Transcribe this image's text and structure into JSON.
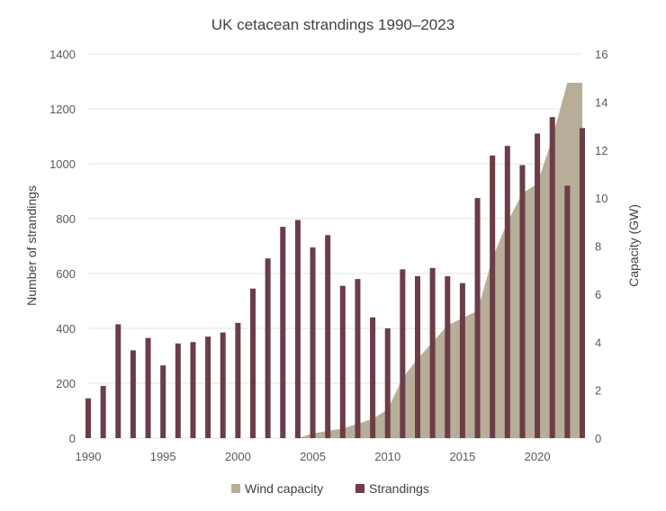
{
  "chart_data": {
    "type": "bar",
    "title": "UK cetacean strandings 1990–2023",
    "x": [
      1990,
      1991,
      1992,
      1993,
      1994,
      1995,
      1996,
      1997,
      1998,
      1999,
      2000,
      2001,
      2002,
      2003,
      2004,
      2005,
      2006,
      2007,
      2008,
      2009,
      2010,
      2011,
      2012,
      2013,
      2014,
      2015,
      2016,
      2017,
      2018,
      2019,
      2020,
      2021,
      2022,
      2023
    ],
    "x_ticks": [
      "1990",
      "1995",
      "2000",
      "2005",
      "2010",
      "2015",
      "2020"
    ],
    "series": [
      {
        "name": "Strandings",
        "type": "bar",
        "axis": "left",
        "color": "#6b3d47",
        "values": [
          145,
          190,
          415,
          320,
          365,
          265,
          345,
          350,
          370,
          385,
          420,
          545,
          655,
          770,
          795,
          695,
          740,
          555,
          580,
          440,
          400,
          615,
          590,
          620,
          590,
          565,
          875,
          1030,
          1065,
          995,
          1110,
          1170,
          920,
          1130
        ]
      },
      {
        "name": "Wind capacity",
        "type": "area",
        "axis": "right",
        "color": "#b8ad98",
        "values": [
          0,
          0,
          0,
          0,
          0,
          0,
          0,
          0,
          0,
          0,
          0,
          0,
          0,
          0,
          0,
          0.2,
          0.3,
          0.4,
          0.6,
          0.8,
          1.2,
          2.5,
          3.3,
          4.0,
          4.7,
          5.0,
          5.3,
          7.5,
          9.0,
          10.2,
          10.6,
          12.5,
          14.8,
          14.8
        ]
      }
    ],
    "ylabel": "Number of strandings",
    "ylim": [
      0,
      1400
    ],
    "yticks": [
      "0",
      "200",
      "400",
      "600",
      "800",
      "1000",
      "1200",
      "1400"
    ],
    "y2label": "Capacity (GW)",
    "y2lim": [
      0,
      16
    ],
    "y2ticks": [
      "0",
      "2",
      "4",
      "6",
      "8",
      "10",
      "12",
      "14",
      "16"
    ],
    "legend": [
      "Wind capacity",
      "Strandings"
    ],
    "legend_position": "bottom",
    "grid": true
  }
}
